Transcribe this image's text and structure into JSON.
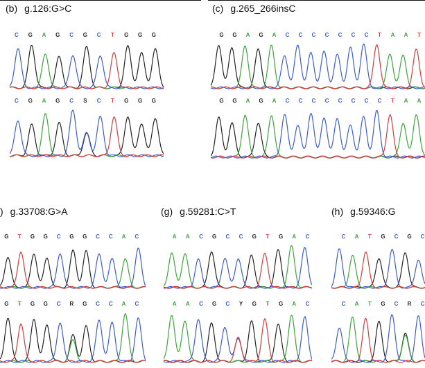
{
  "colors": {
    "A": "#3aa63a",
    "C": "#3b5bd6",
    "G": "#222222",
    "T": "#d93a3a"
  },
  "panels": [
    {
      "id": "b",
      "tag": "(b)",
      "title": "g.126:G>C",
      "top_seq": [
        "C",
        "G",
        "A",
        "G",
        "C",
        "G",
        "C",
        "T",
        "G",
        "G",
        "G"
      ],
      "bottom_seq": [
        "C",
        "G",
        "A",
        "G",
        "C",
        "S",
        "C",
        "T",
        "G",
        "G",
        "G"
      ]
    },
    {
      "id": "c",
      "tag": "(c)",
      "title": "g.265_266insC",
      "top_seq": [
        "G",
        "G",
        "A",
        "G",
        "A",
        "C",
        "C",
        "C",
        "C",
        "C",
        "C",
        "C",
        "T",
        "A",
        "A",
        "T"
      ],
      "bottom_seq": [
        "G",
        "G",
        "A",
        "G",
        "A",
        "C",
        "C",
        "C",
        "C",
        "C",
        "C",
        "C",
        "C",
        "T",
        "A",
        "A"
      ]
    },
    {
      "id": "f",
      "tag": ")",
      "title": "g.33708:G>A",
      "top_seq": [
        "G",
        "T",
        "G",
        "G",
        "C",
        "G",
        "G",
        "C",
        "C",
        "A",
        "C"
      ],
      "bottom_seq": [
        "G",
        "T",
        "G",
        "G",
        "C",
        "R",
        "G",
        "C",
        "C",
        "A",
        "C"
      ]
    },
    {
      "id": "g",
      "tag": "(g)",
      "title": "g.59281:C>T",
      "top_seq": [
        "A",
        "A",
        "C",
        "G",
        "C",
        "C",
        "G",
        "T",
        "G",
        "A",
        "C"
      ],
      "bottom_seq": [
        "A",
        "A",
        "C",
        "G",
        "C",
        "Y",
        "G",
        "T",
        "G",
        "A",
        "C"
      ]
    },
    {
      "id": "h",
      "tag": "(h)",
      "title": "g.59346:G",
      "top_seq": [
        "C",
        "A",
        "T",
        "G",
        "C",
        "G",
        "C"
      ],
      "bottom_seq": [
        "C",
        "A",
        "T",
        "G",
        "C",
        "R",
        "C"
      ]
    }
  ]
}
